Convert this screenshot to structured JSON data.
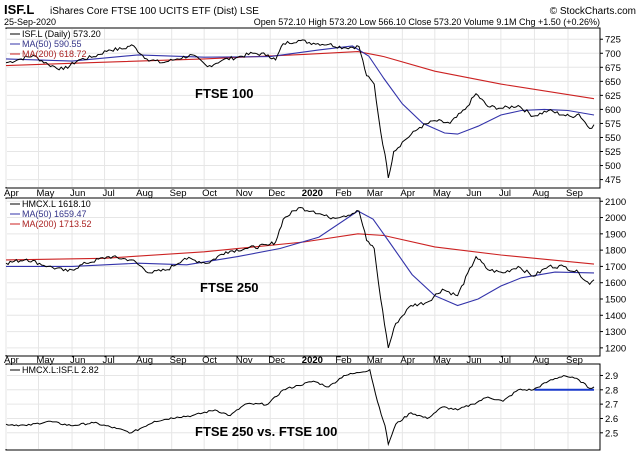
{
  "header": {
    "ticker": "ISF.L",
    "name": "iShares Core FTSE 100 UCITS ETF (Dist) LSE",
    "date": "25-Sep-2020",
    "ohlc": "Open 572.10  High 573.20  Low 566.10  Close 573.20  Volume 9.1M  Chg +1.50 (+0.26%)",
    "source": "© StockCharts.com"
  },
  "x_axis": {
    "labels": [
      "Apr",
      "May",
      "Jun",
      "Jul",
      "Aug",
      "Sep",
      "Oct",
      "Nov",
      "Dec",
      "2020",
      "Feb",
      "Mar",
      "Apr",
      "May",
      "Jun",
      "Jul",
      "Aug",
      "Sep"
    ],
    "start": "2019-04-01",
    "end": "2020-09-25"
  },
  "colors": {
    "price": "#000000",
    "ma50": "#3333aa",
    "ma200": "#cc2222",
    "support": "#1a3acc",
    "grid": "#e6e6e6"
  },
  "chart_data": [
    {
      "type": "line",
      "title": "FTSE 100",
      "legend": {
        "price": "ISF.L (Daily) 573.20",
        "ma50": "MA(50) 590.55",
        "ma200": "MA(200) 618.72",
        "placement": "top-left"
      },
      "ylim": [
        460,
        745
      ],
      "yticks": [
        475,
        500,
        525,
        550,
        575,
        600,
        625,
        650,
        675,
        700,
        725
      ],
      "series": [
        {
          "name": "ISF.L (Daily) 573.20",
          "role": "price",
          "points": [
            [
              "2019-04-01",
              683
            ],
            [
              "2019-04-15",
              690
            ],
            [
              "2019-04-26",
              696
            ],
            [
              "2019-05-10",
              680
            ],
            [
              "2019-05-24",
              671
            ],
            [
              "2019-06-07",
              688
            ],
            [
              "2019-06-21",
              694
            ],
            [
              "2019-07-05",
              706
            ],
            [
              "2019-07-19",
              708
            ],
            [
              "2019-07-26",
              715
            ],
            [
              "2019-08-09",
              690
            ],
            [
              "2019-08-23",
              683
            ],
            [
              "2019-09-06",
              690
            ],
            [
              "2019-09-20",
              697
            ],
            [
              "2019-10-04",
              676
            ],
            [
              "2019-10-18",
              688
            ],
            [
              "2019-11-01",
              693
            ],
            [
              "2019-11-15",
              700
            ],
            [
              "2019-11-29",
              697
            ],
            [
              "2019-12-06",
              688
            ],
            [
              "2019-12-13",
              717
            ],
            [
              "2019-12-27",
              723
            ],
            [
              "2020-01-10",
              718
            ],
            [
              "2020-01-24",
              716
            ],
            [
              "2020-02-07",
              710
            ],
            [
              "2020-02-21",
              712
            ],
            [
              "2020-02-28",
              660
            ],
            [
              "2020-03-06",
              645
            ],
            [
              "2020-03-12",
              560
            ],
            [
              "2020-03-16",
              520
            ],
            [
              "2020-03-19",
              478
            ],
            [
              "2020-03-24",
              525
            ],
            [
              "2020-04-03",
              545
            ],
            [
              "2020-04-17",
              568
            ],
            [
              "2020-05-01",
              580
            ],
            [
              "2020-05-15",
              575
            ],
            [
              "2020-05-29",
              600
            ],
            [
              "2020-06-08",
              628
            ],
            [
              "2020-06-19",
              605
            ],
            [
              "2020-07-03",
              602
            ],
            [
              "2020-07-17",
              607
            ],
            [
              "2020-07-31",
              588
            ],
            [
              "2020-08-14",
              598
            ],
            [
              "2020-08-28",
              590
            ],
            [
              "2020-09-04",
              587
            ],
            [
              "2020-09-11",
              592
            ],
            [
              "2020-09-21",
              566
            ],
            [
              "2020-09-25",
              573
            ]
          ]
        },
        {
          "name": "MA(50) 590.55",
          "role": "ma50",
          "points": [
            [
              "2019-04-01",
              690
            ],
            [
              "2019-06-01",
              686
            ],
            [
              "2019-08-01",
              697
            ],
            [
              "2019-10-01",
              693
            ],
            [
              "2019-12-01",
              694
            ],
            [
              "2020-01-15",
              706
            ],
            [
              "2020-02-15",
              713
            ],
            [
              "2020-03-01",
              695
            ],
            [
              "2020-03-15",
              655
            ],
            [
              "2020-04-01",
              610
            ],
            [
              "2020-04-20",
              575
            ],
            [
              "2020-05-10",
              558
            ],
            [
              "2020-05-22",
              556
            ],
            [
              "2020-06-10",
              570
            ],
            [
              "2020-07-01",
              590
            ],
            [
              "2020-07-20",
              598
            ],
            [
              "2020-08-10",
              600
            ],
            [
              "2020-09-01",
              598
            ],
            [
              "2020-09-25",
              590
            ]
          ]
        },
        {
          "name": "MA(200) 618.72",
          "role": "ma200",
          "points": [
            [
              "2019-04-01",
              678
            ],
            [
              "2019-07-01",
              684
            ],
            [
              "2019-10-01",
              690
            ],
            [
              "2020-01-01",
              698
            ],
            [
              "2020-02-20",
              703
            ],
            [
              "2020-03-15",
              694
            ],
            [
              "2020-05-01",
              668
            ],
            [
              "2020-07-01",
              645
            ],
            [
              "2020-09-25",
              619
            ]
          ]
        }
      ]
    },
    {
      "type": "line",
      "title": "FTSE 250",
      "legend": {
        "price": "HMCX.L 1618.10",
        "ma50": "MA(50) 1659.47",
        "ma200": "MA(200) 1713.52",
        "placement": "top-left"
      },
      "ylim": [
        1150,
        2120
      ],
      "yticks": [
        1200,
        1300,
        1400,
        1500,
        1600,
        1700,
        1800,
        1900,
        2000,
        2100
      ],
      "series": [
        {
          "name": "HMCX.L 1618.10",
          "role": "price",
          "points": [
            [
              "2019-04-01",
              1720
            ],
            [
              "2019-04-20",
              1745
            ],
            [
              "2019-05-10",
              1700
            ],
            [
              "2019-05-28",
              1670
            ],
            [
              "2019-06-14",
              1720
            ],
            [
              "2019-07-05",
              1760
            ],
            [
              "2019-07-26",
              1740
            ],
            [
              "2019-08-12",
              1660
            ],
            [
              "2019-08-28",
              1680
            ],
            [
              "2019-09-13",
              1750
            ],
            [
              "2019-10-04",
              1720
            ],
            [
              "2019-10-21",
              1790
            ],
            [
              "2019-11-08",
              1810
            ],
            [
              "2019-11-29",
              1830
            ],
            [
              "2019-12-06",
              1850
            ],
            [
              "2019-12-13",
              1990
            ],
            [
              "2019-12-27",
              2060
            ],
            [
              "2020-01-10",
              2040
            ],
            [
              "2020-01-24",
              2000
            ],
            [
              "2020-02-07",
              2010
            ],
            [
              "2020-02-21",
              2040
            ],
            [
              "2020-02-28",
              1860
            ],
            [
              "2020-03-06",
              1810
            ],
            [
              "2020-03-12",
              1500
            ],
            [
              "2020-03-19",
              1200
            ],
            [
              "2020-03-26",
              1350
            ],
            [
              "2020-04-09",
              1460
            ],
            [
              "2020-04-24",
              1480
            ],
            [
              "2020-05-08",
              1560
            ],
            [
              "2020-05-22",
              1520
            ],
            [
              "2020-06-08",
              1760
            ],
            [
              "2020-06-19",
              1680
            ],
            [
              "2020-07-03",
              1660
            ],
            [
              "2020-07-17",
              1700
            ],
            [
              "2020-07-31",
              1640
            ],
            [
              "2020-08-14",
              1700
            ],
            [
              "2020-08-28",
              1700
            ],
            [
              "2020-09-11",
              1660
            ],
            [
              "2020-09-21",
              1590
            ],
            [
              "2020-09-25",
              1618
            ]
          ]
        },
        {
          "name": "MA(50) 1659.47",
          "role": "ma50",
          "points": [
            [
              "2019-04-01",
              1700
            ],
            [
              "2019-06-01",
              1700
            ],
            [
              "2019-08-01",
              1720
            ],
            [
              "2019-09-15",
              1710
            ],
            [
              "2019-11-01",
              1760
            ],
            [
              "2019-12-10",
              1810
            ],
            [
              "2020-01-15",
              1880
            ],
            [
              "2020-02-20",
              2040
            ],
            [
              "2020-03-05",
              1990
            ],
            [
              "2020-03-20",
              1850
            ],
            [
              "2020-04-10",
              1650
            ],
            [
              "2020-05-01",
              1520
            ],
            [
              "2020-05-22",
              1460
            ],
            [
              "2020-06-10",
              1500
            ],
            [
              "2020-07-01",
              1580
            ],
            [
              "2020-07-20",
              1630
            ],
            [
              "2020-08-20",
              1665
            ],
            [
              "2020-09-25",
              1660
            ]
          ]
        },
        {
          "name": "MA(200) 1713.52",
          "role": "ma200",
          "points": [
            [
              "2019-04-01",
              1740
            ],
            [
              "2019-07-01",
              1750
            ],
            [
              "2019-10-01",
              1790
            ],
            [
              "2020-01-01",
              1850
            ],
            [
              "2020-02-20",
              1900
            ],
            [
              "2020-03-15",
              1890
            ],
            [
              "2020-05-01",
              1820
            ],
            [
              "2020-07-01",
              1770
            ],
            [
              "2020-09-25",
              1714
            ]
          ]
        }
      ]
    },
    {
      "type": "line",
      "title": "FTSE 250 vs. FTSE 100",
      "legend": {
        "price": "HMCX.L:ISF.L 2.82",
        "placement": "top-left"
      },
      "ylim": [
        2.38,
        2.98
      ],
      "yticks": [
        2.5,
        2.6,
        2.7,
        2.8,
        2.9
      ],
      "support_level": {
        "value": 2.8,
        "from": "2020-08-01",
        "to": "2020-09-25"
      },
      "series": [
        {
          "name": "HMCX.L:ISF.L 2.82",
          "role": "price",
          "points": [
            [
              "2019-04-01",
              2.56
            ],
            [
              "2019-04-20",
              2.55
            ],
            [
              "2019-05-10",
              2.58
            ],
            [
              "2019-05-31",
              2.55
            ],
            [
              "2019-06-21",
              2.57
            ],
            [
              "2019-07-12",
              2.53
            ],
            [
              "2019-07-26",
              2.5
            ],
            [
              "2019-08-16",
              2.58
            ],
            [
              "2019-09-06",
              2.61
            ],
            [
              "2019-09-20",
              2.62
            ],
            [
              "2019-10-11",
              2.66
            ],
            [
              "2019-10-25",
              2.62
            ],
            [
              "2019-11-08",
              2.7
            ],
            [
              "2019-11-29",
              2.7
            ],
            [
              "2019-12-13",
              2.8
            ],
            [
              "2019-12-27",
              2.83
            ],
            [
              "2020-01-10",
              2.86
            ],
            [
              "2020-01-24",
              2.82
            ],
            [
              "2020-02-07",
              2.9
            ],
            [
              "2020-02-21",
              2.92
            ],
            [
              "2020-03-02",
              2.94
            ],
            [
              "2020-03-09",
              2.72
            ],
            [
              "2020-03-16",
              2.55
            ],
            [
              "2020-03-19",
              2.42
            ],
            [
              "2020-03-26",
              2.56
            ],
            [
              "2020-04-09",
              2.64
            ],
            [
              "2020-04-24",
              2.6
            ],
            [
              "2020-05-08",
              2.68
            ],
            [
              "2020-05-22",
              2.66
            ],
            [
              "2020-06-05",
              2.7
            ],
            [
              "2020-06-19",
              2.75
            ],
            [
              "2020-07-03",
              2.72
            ],
            [
              "2020-07-17",
              2.8
            ],
            [
              "2020-07-31",
              2.8
            ],
            [
              "2020-08-14",
              2.86
            ],
            [
              "2020-08-28",
              2.9
            ],
            [
              "2020-09-11",
              2.87
            ],
            [
              "2020-09-21",
              2.81
            ],
            [
              "2020-09-25",
              2.82
            ]
          ]
        }
      ]
    }
  ]
}
